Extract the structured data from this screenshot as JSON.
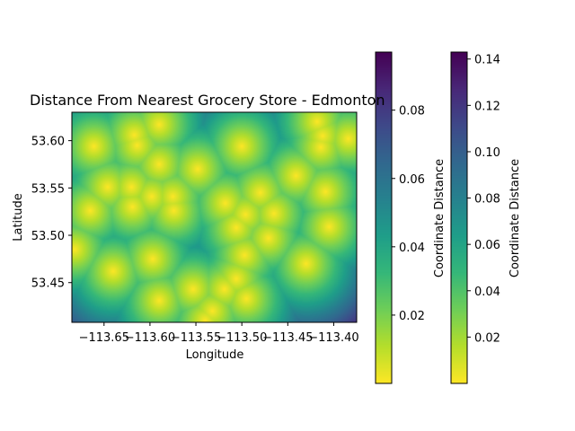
{
  "chart_data": {
    "type": "heatmap",
    "title": "Distance From Nearest Grocery Store - Edmonton",
    "xlabel": "Longitude",
    "ylabel": "Latitude",
    "xlim": [
      -113.685,
      -113.375
    ],
    "ylim": [
      53.408,
      53.63
    ],
    "x_ticks": [
      -113.65,
      -113.6,
      -113.55,
      -113.5,
      -113.45,
      -113.4
    ],
    "x_tick_labels": [
      "−113.65",
      "−113.60",
      "−113.55",
      "−113.50",
      "−113.45",
      "−113.40"
    ],
    "y_ticks": [
      53.45,
      53.5,
      53.55,
      53.6
    ],
    "y_tick_labels": [
      "53.45",
      "53.50",
      "53.55",
      "53.60"
    ],
    "colormap": "viridis_r",
    "grid": false,
    "stores": [
      [
        -113.661,
        53.594
      ],
      [
        -113.617,
        53.606
      ],
      [
        -113.614,
        53.595
      ],
      [
        -113.59,
        53.617
      ],
      [
        -113.59,
        53.575
      ],
      [
        -113.548,
        53.57
      ],
      [
        -113.5,
        53.594
      ],
      [
        -113.418,
        53.62
      ],
      [
        -113.412,
        53.605
      ],
      [
        -113.414,
        53.593
      ],
      [
        -113.384,
        53.602
      ],
      [
        -113.441,
        53.563
      ],
      [
        -113.48,
        53.545
      ],
      [
        -113.518,
        53.534
      ],
      [
        -113.409,
        53.546
      ],
      [
        -113.646,
        53.551
      ],
      [
        -113.62,
        53.551
      ],
      [
        -113.598,
        53.541
      ],
      [
        -113.575,
        53.541
      ],
      [
        -113.619,
        53.53
      ],
      [
        -113.574,
        53.526
      ],
      [
        -113.665,
        53.526
      ],
      [
        -113.682,
        53.485
      ],
      [
        -113.496,
        53.522
      ],
      [
        -113.465,
        53.523
      ],
      [
        -113.506,
        53.508
      ],
      [
        -113.471,
        53.497
      ],
      [
        -113.405,
        53.509
      ],
      [
        -113.597,
        53.475
      ],
      [
        -113.497,
        53.479
      ],
      [
        -113.64,
        53.462
      ],
      [
        -113.553,
        53.443
      ],
      [
        -113.506,
        53.454
      ],
      [
        -113.519,
        53.443
      ],
      [
        -113.495,
        53.433
      ],
      [
        -113.59,
        53.431
      ],
      [
        -113.532,
        53.42
      ],
      [
        -113.43,
        53.47
      ],
      [
        -113.54,
        53.41
      ]
    ],
    "colorbars": [
      {
        "label": "Coordinate Distance",
        "range": [
          0.0,
          0.097
        ],
        "ticks": [
          0.02,
          0.04,
          0.06,
          0.08
        ],
        "tick_labels": [
          "0.02",
          "0.04",
          "0.06",
          "0.08"
        ]
      },
      {
        "label": "Coordinate Distance",
        "range": [
          0.0,
          0.143
        ],
        "ticks": [
          0.02,
          0.04,
          0.06,
          0.08,
          0.1,
          0.12,
          0.14
        ],
        "tick_labels": [
          "0.02",
          "0.04",
          "0.06",
          "0.08",
          "0.10",
          "0.12",
          "0.14"
        ]
      }
    ]
  }
}
